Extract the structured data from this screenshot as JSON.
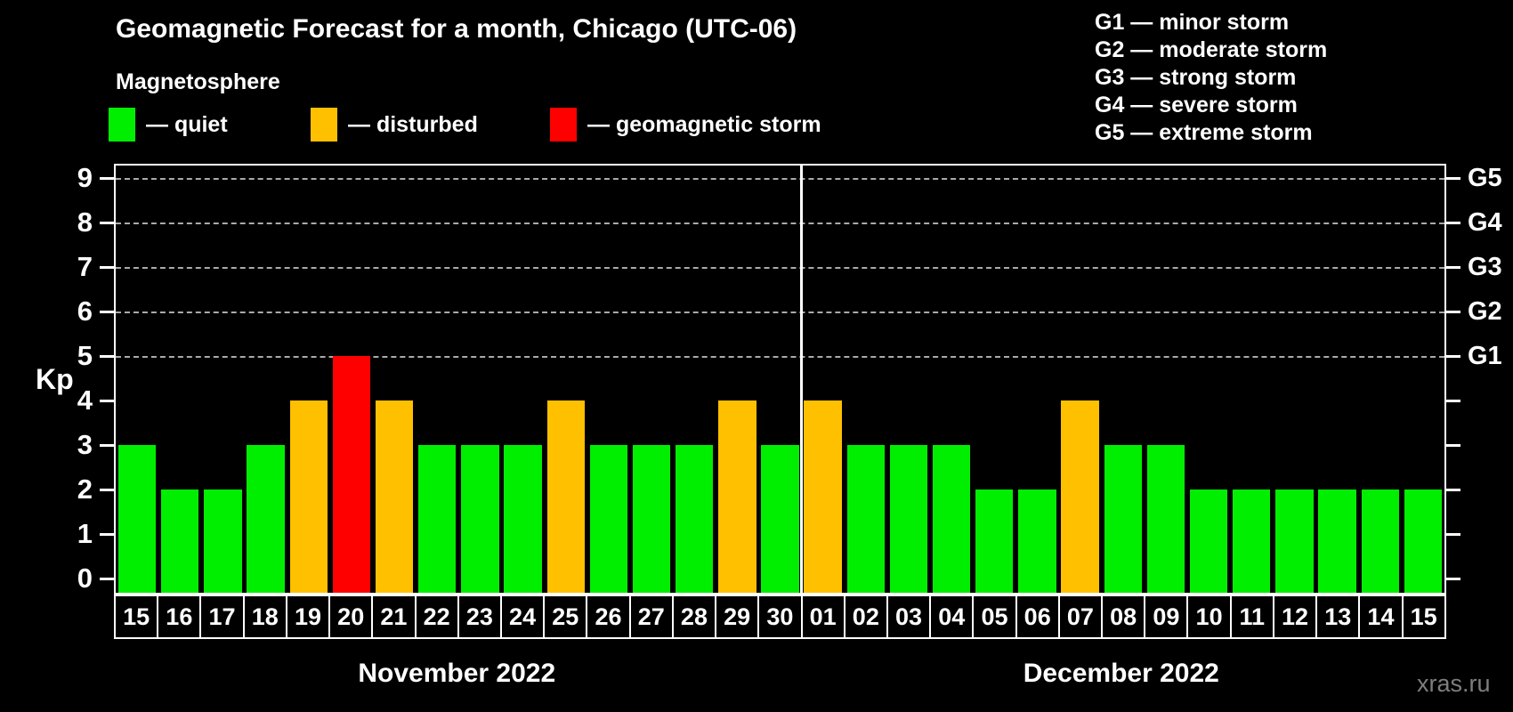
{
  "title": "Geomagnetic Forecast for a month, Chicago (UTC-06)",
  "subtitle": "Magnetosphere",
  "legend": {
    "items": [
      {
        "name": "quiet",
        "label": "— quiet",
        "color": "#00ee00"
      },
      {
        "name": "disturbed",
        "label": "— disturbed",
        "color": "#ffc000"
      },
      {
        "name": "storm",
        "label": "— geomagnetic storm",
        "color": "#ff0000"
      }
    ]
  },
  "g_legend": [
    "G1 — minor storm",
    "G2 — moderate storm",
    "G3 — strong storm",
    "G4 — severe storm",
    "G5 — extreme storm"
  ],
  "watermark": "xras.ru",
  "chart_data": {
    "type": "bar",
    "title": "Geomagnetic Forecast for a month, Chicago (UTC-06)",
    "ylabel": "Kp",
    "ylim": [
      0,
      9
    ],
    "yticks": [
      0,
      1,
      2,
      3,
      4,
      5,
      6,
      7,
      8,
      9
    ],
    "gridlines_at": [
      5,
      6,
      7,
      8,
      9
    ],
    "grid": "dashed, levels 5-9 only",
    "legend_position": "top",
    "right_axis_labels": [
      {
        "level": 5,
        "label": "G1"
      },
      {
        "level": 6,
        "label": "G2"
      },
      {
        "level": 7,
        "label": "G3"
      },
      {
        "level": 8,
        "label": "G4"
      },
      {
        "level": 9,
        "label": "G5"
      }
    ],
    "status_colors": {
      "quiet": "#00ee00",
      "disturbed": "#ffc000",
      "storm": "#ff0000"
    },
    "months": [
      {
        "label": "November 2022",
        "days": [
          {
            "day": "15",
            "kp": 3,
            "status": "quiet"
          },
          {
            "day": "16",
            "kp": 2,
            "status": "quiet"
          },
          {
            "day": "17",
            "kp": 2,
            "status": "quiet"
          },
          {
            "day": "18",
            "kp": 3,
            "status": "quiet"
          },
          {
            "day": "19",
            "kp": 4,
            "status": "disturbed"
          },
          {
            "day": "20",
            "kp": 5,
            "status": "storm"
          },
          {
            "day": "21",
            "kp": 4,
            "status": "disturbed"
          },
          {
            "day": "22",
            "kp": 3,
            "status": "quiet"
          },
          {
            "day": "23",
            "kp": 3,
            "status": "quiet"
          },
          {
            "day": "24",
            "kp": 3,
            "status": "quiet"
          },
          {
            "day": "25",
            "kp": 4,
            "status": "disturbed"
          },
          {
            "day": "26",
            "kp": 3,
            "status": "quiet"
          },
          {
            "day": "27",
            "kp": 3,
            "status": "quiet"
          },
          {
            "day": "28",
            "kp": 3,
            "status": "quiet"
          },
          {
            "day": "29",
            "kp": 4,
            "status": "disturbed"
          },
          {
            "day": "30",
            "kp": 3,
            "status": "quiet"
          }
        ]
      },
      {
        "label": "December 2022",
        "days": [
          {
            "day": "01",
            "kp": 4,
            "status": "disturbed"
          },
          {
            "day": "02",
            "kp": 3,
            "status": "quiet"
          },
          {
            "day": "03",
            "kp": 3,
            "status": "quiet"
          },
          {
            "day": "04",
            "kp": 3,
            "status": "quiet"
          },
          {
            "day": "05",
            "kp": 2,
            "status": "quiet"
          },
          {
            "day": "06",
            "kp": 2,
            "status": "quiet"
          },
          {
            "day": "07",
            "kp": 4,
            "status": "disturbed"
          },
          {
            "day": "08",
            "kp": 3,
            "status": "quiet"
          },
          {
            "day": "09",
            "kp": 3,
            "status": "quiet"
          },
          {
            "day": "10",
            "kp": 2,
            "status": "quiet"
          },
          {
            "day": "11",
            "kp": 2,
            "status": "quiet"
          },
          {
            "day": "12",
            "kp": 2,
            "status": "quiet"
          },
          {
            "day": "13",
            "kp": 2,
            "status": "quiet"
          },
          {
            "day": "14",
            "kp": 2,
            "status": "quiet"
          },
          {
            "day": "15",
            "kp": 2,
            "status": "quiet"
          }
        ]
      }
    ]
  }
}
